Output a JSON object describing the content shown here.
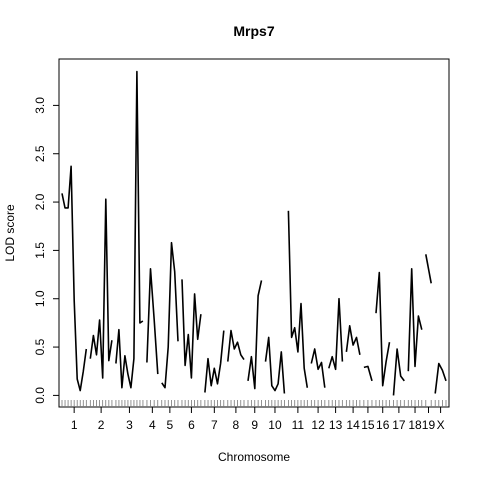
{
  "chart_data": {
    "type": "line",
    "title": "Mrps7",
    "xlabel": "Chromosome",
    "ylabel": "LOD score",
    "ylim": [
      -0.12,
      3.48
    ],
    "yticks": [
      0.0,
      0.5,
      1.0,
      1.5,
      2.0,
      2.5,
      3.0
    ],
    "ytick_labels": [
      "0.0",
      "0.5",
      "1.0",
      "1.5",
      "2.0",
      "2.5",
      "3.0"
    ],
    "grid": false,
    "chromosomes": [
      "1",
      "2",
      "3",
      "4",
      "5",
      "6",
      "7",
      "8",
      "9",
      "10",
      "11",
      "12",
      "13",
      "14",
      "15",
      "16",
      "17",
      "18",
      "19",
      "X"
    ],
    "x_tick_labels": [
      "1",
      "2",
      "3",
      "4",
      "5",
      "6",
      "7",
      "8",
      "9",
      "10",
      "11",
      "12",
      "13",
      "14",
      "15",
      "16",
      "17",
      "18",
      "19",
      "X"
    ],
    "series": [
      {
        "chr": "1",
        "values": [
          2.09,
          1.94,
          1.94,
          2.37,
          0.98,
          0.17,
          0.05,
          0.25,
          0.48
        ]
      },
      {
        "chr": "2",
        "values": [
          0.38,
          0.62,
          0.42,
          0.78,
          0.18,
          2.03,
          0.36,
          0.57
        ]
      },
      {
        "chr": "3",
        "values": [
          0.33,
          0.68,
          0.08,
          0.41,
          0.22,
          0.08,
          0.38,
          3.35,
          0.75,
          0.77
        ]
      },
      {
        "chr": "4",
        "values": [
          0.34,
          1.31,
          0.78,
          0.22
        ]
      },
      {
        "chr": "5",
        "values": [
          0.13,
          0.08,
          0.5,
          1.58,
          1.28,
          0.56
        ]
      },
      {
        "chr": "6",
        "values": [
          1.2,
          0.31,
          0.63,
          0.18,
          1.05,
          0.58,
          0.84
        ]
      },
      {
        "chr": "7",
        "values": [
          0.03,
          0.38,
          0.1,
          0.28,
          0.12,
          0.33,
          0.67
        ]
      },
      {
        "chr": "8",
        "values": [
          0.35,
          0.67,
          0.48,
          0.55,
          0.42,
          0.37
        ]
      },
      {
        "chr": "9",
        "values": [
          0.15,
          0.4,
          0.07,
          1.03,
          1.19
        ]
      },
      {
        "chr": "10",
        "values": [
          0.35,
          0.6,
          0.1,
          0.05,
          0.12,
          0.45,
          0.02
        ]
      },
      {
        "chr": "11",
        "values": [
          1.91,
          0.6,
          0.7,
          0.45,
          0.95,
          0.28,
          0.08
        ]
      },
      {
        "chr": "12",
        "values": [
          0.33,
          0.48,
          0.27,
          0.34,
          0.08
        ]
      },
      {
        "chr": "13",
        "values": [
          0.28,
          0.4,
          0.27,
          1.0,
          0.35
        ]
      },
      {
        "chr": "14",
        "values": [
          0.45,
          0.72,
          0.52,
          0.6,
          0.42
        ]
      },
      {
        "chr": "15",
        "values": [
          0.29,
          0.3,
          0.15
        ]
      },
      {
        "chr": "16",
        "values": [
          0.85,
          1.27,
          0.1,
          0.35,
          0.55
        ]
      },
      {
        "chr": "17",
        "values": [
          0.0,
          0.48,
          0.2,
          0.15
        ]
      },
      {
        "chr": "18",
        "values": [
          0.25,
          1.31,
          0.3,
          0.82,
          0.68
        ]
      },
      {
        "chr": "19",
        "values": [
          1.46,
          1.16
        ]
      },
      {
        "chr": "X",
        "values": [
          0.02,
          0.33,
          0.26,
          0.15
        ]
      }
    ]
  }
}
